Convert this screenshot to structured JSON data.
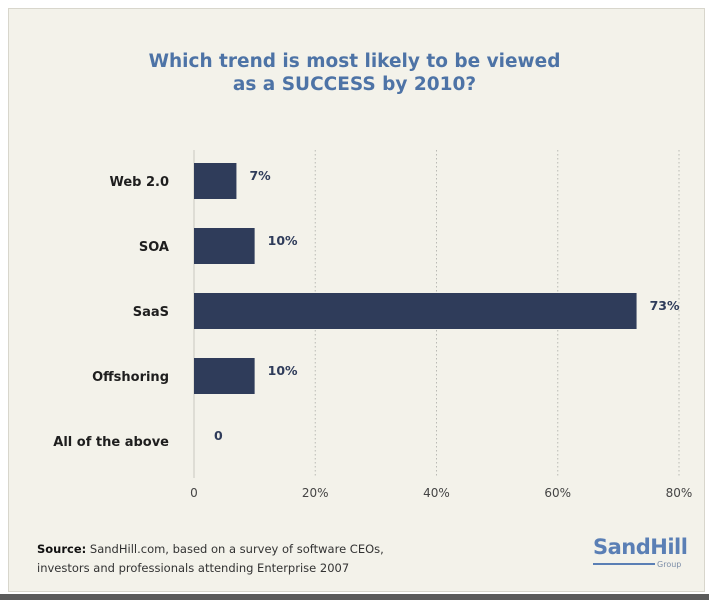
{
  "title_lines": [
    "Which trend is most likely to be viewed",
    "as a SUCCESS by 2010?"
  ],
  "source": {
    "label": "Source:",
    "line1": " SandHill.com, based on a survey of software CEOs,",
    "line2": "investors and professionals attending Enterprise 2007"
  },
  "logo": {
    "text": "SandHill",
    "subtext": "Group"
  },
  "colors": {
    "bar": "#2f3c5a",
    "title": "#4d73a6",
    "background": "#f3f2ea",
    "grid": "#b9b9b4"
  },
  "chart_data": {
    "type": "bar",
    "orientation": "horizontal",
    "title": "Which trend is most likely to be viewed as a SUCCESS by 2010?",
    "categories": [
      "Web 2.0",
      "SOA",
      "SaaS",
      "Offshoring",
      "All of the above"
    ],
    "values": [
      7,
      10,
      73,
      10,
      0
    ],
    "data_labels": [
      "7%",
      "10%",
      "73%",
      "10%",
      "0"
    ],
    "x_ticks": [
      0,
      20,
      40,
      60,
      80
    ],
    "x_tick_labels": [
      "0",
      "20%",
      "40%",
      "60%",
      "80%"
    ],
    "xlim": [
      0,
      80
    ],
    "xlabel": "",
    "ylabel": "",
    "grid": "vertical dotted",
    "legend": "none"
  }
}
